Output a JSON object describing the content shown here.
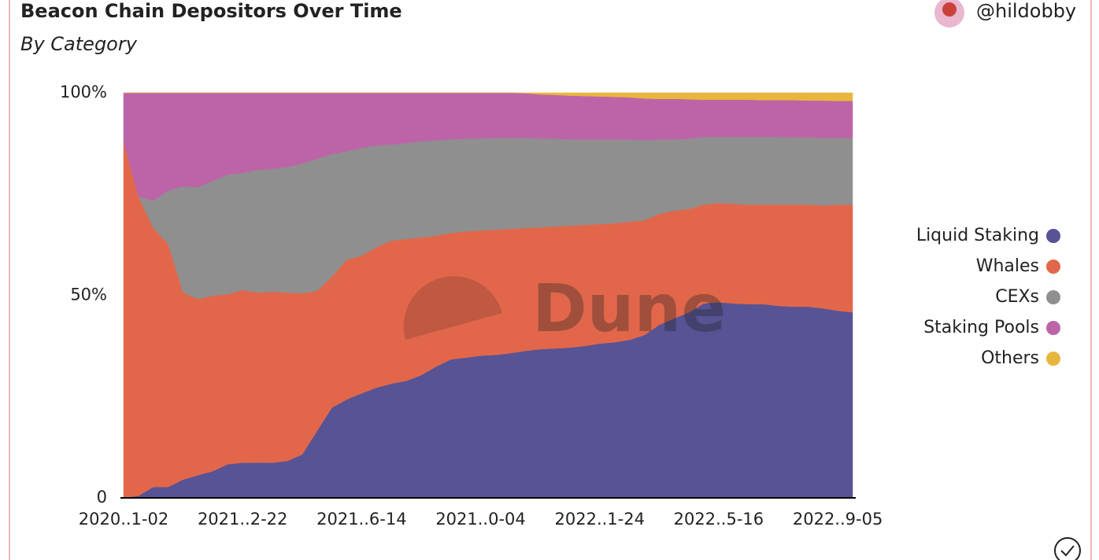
{
  "chart_data": {
    "type": "stacked_area",
    "title": "Beacon Chain Depositors Over Time",
    "subtitle": "By Category",
    "author": "@hildobby",
    "watermark": "Dune",
    "categories": [
      "2020..1-02",
      null,
      null,
      null,
      null,
      null,
      null,
      null,
      "2021..2-22",
      null,
      null,
      null,
      null,
      null,
      null,
      null,
      "2021..6-14",
      null,
      null,
      null,
      null,
      null,
      null,
      null,
      "2021..0-04",
      null,
      null,
      null,
      null,
      null,
      null,
      null,
      "2022..1-24",
      null,
      null,
      null,
      null,
      null,
      null,
      null,
      "2022..5-16",
      null,
      null,
      null,
      null,
      null,
      null,
      null,
      "2022..9-05",
      null
    ],
    "series": [
      {
        "name": "Liquid Staking",
        "color": "#575395",
        "values": [
          0,
          0.5,
          2.7,
          2.7,
          4.5,
          5.6,
          6.6,
          8.3,
          8.7,
          8.7,
          8.7,
          9.1,
          10.7,
          16.5,
          22.3,
          24.3,
          25.8,
          27.2,
          28.2,
          28.9,
          30.3,
          32.4,
          34.2,
          34.6,
          35.1,
          35.3,
          35.7,
          36.3,
          36.7,
          36.9,
          37.1,
          37.5,
          38.1,
          38.4,
          39.0,
          40.2,
          42.7,
          44.3,
          45.8,
          48.0,
          48.3,
          48.0,
          47.8,
          47.8,
          47.4,
          47.2,
          47.2,
          46.8,
          46.2,
          45.8
        ]
      },
      {
        "name": "Whales",
        "color": "#e2674a",
        "values": [
          88.0,
          73.9,
          63.9,
          60.0,
          46.2,
          43.5,
          43.3,
          42.0,
          42.6,
          42.0,
          42.2,
          41.6,
          39.8,
          34.6,
          32.3,
          34.5,
          34.0,
          34.7,
          35.3,
          35.0,
          34.0,
          32.3,
          31.2,
          31.2,
          30.9,
          30.9,
          30.7,
          30.3,
          30.1,
          30.1,
          30.1,
          29.9,
          29.5,
          29.4,
          29.2,
          28.3,
          27.4,
          26.6,
          25.5,
          24.4,
          24.5,
          24.6,
          24.6,
          24.6,
          25.0,
          25.2,
          25.2,
          25.4,
          26.2,
          26.6
        ]
      },
      {
        "name": "CEXs",
        "color": "#8f8f8f",
        "values": [
          0,
          0,
          6.8,
          13.2,
          26.2,
          27.6,
          28.4,
          29.5,
          28.9,
          30.3,
          30.3,
          31.0,
          32.0,
          32.6,
          30.3,
          26.8,
          26.6,
          25.1,
          23.7,
          23.7,
          23.7,
          23.6,
          23.1,
          22.9,
          22.7,
          22.7,
          22.5,
          22.3,
          21.9,
          21.7,
          21.3,
          21.1,
          20.9,
          20.7,
          20.3,
          19.8,
          18.4,
          17.6,
          17.4,
          16.7,
          16.3,
          16.5,
          16.7,
          16.7,
          16.7,
          16.6,
          16.6,
          16.7,
          16.5,
          16.5
        ]
      },
      {
        "name": "Staking Pools",
        "color": "#bd64a8",
        "values": [
          12.0,
          25.6,
          26.6,
          24.1,
          23.1,
          23.3,
          21.7,
          20.2,
          19.8,
          19.0,
          18.8,
          18.3,
          17.5,
          16.3,
          15.1,
          14.4,
          13.6,
          13.0,
          12.8,
          12.4,
          12.0,
          11.7,
          11.5,
          11.3,
          11.3,
          11.1,
          11.1,
          11.0,
          10.9,
          10.8,
          10.8,
          10.7,
          10.6,
          10.5,
          10.4,
          10.3,
          10.0,
          10.0,
          9.7,
          9.2,
          9.2,
          9.2,
          9.2,
          9.1,
          9.1,
          9.2,
          9.1,
          9.2,
          9.1,
          9.1
        ]
      },
      {
        "name": "Others",
        "color": "#e8b63c",
        "values": [
          0,
          0,
          0,
          0,
          0,
          0,
          0,
          0,
          0,
          0,
          0,
          0,
          0,
          0,
          0,
          0,
          0,
          0,
          0,
          0,
          0,
          0,
          0,
          0,
          0,
          0,
          0,
          0.1,
          0.4,
          0.5,
          0.7,
          0.8,
          0.9,
          1.0,
          1.1,
          1.4,
          1.5,
          1.5,
          1.6,
          1.7,
          1.7,
          1.7,
          1.7,
          1.8,
          1.8,
          1.8,
          1.9,
          1.9,
          2.0,
          2.0
        ]
      }
    ],
    "ylim": [
      0,
      100
    ],
    "yticks": [
      0,
      {
        "value": 50,
        "label": "50%"
      },
      {
        "value": 100,
        "label": "100%"
      }
    ],
    "legend": "right"
  }
}
